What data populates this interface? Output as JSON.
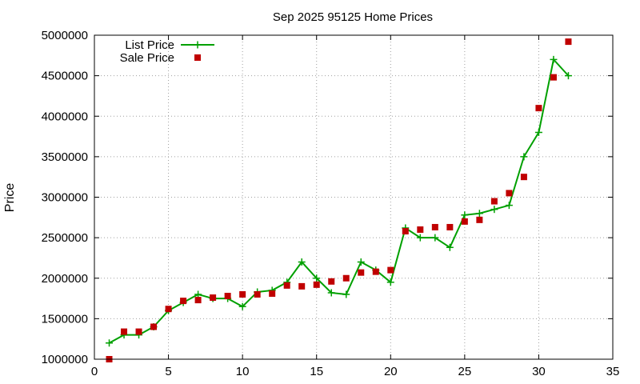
{
  "chart_data": {
    "type": "line",
    "title": "Sep 2025 95125 Home Prices",
    "xlabel": "",
    "ylabel": "Price",
    "xlim": [
      0,
      35
    ],
    "ylim": [
      1000000,
      5000000
    ],
    "xticks": [
      0,
      5,
      10,
      15,
      20,
      25,
      30,
      35
    ],
    "yticks": [
      1000000,
      1500000,
      2000000,
      2500000,
      3000000,
      3500000,
      4000000,
      4500000,
      5000000
    ],
    "grid": true,
    "legend": "top-left",
    "series": [
      {
        "name": "List Price",
        "style": "linespoints",
        "color": "#00a000",
        "x": [
          1,
          2,
          3,
          4,
          5,
          6,
          7,
          8,
          9,
          10,
          11,
          12,
          13,
          14,
          15,
          16,
          17,
          18,
          19,
          20,
          21,
          22,
          23,
          24,
          25,
          26,
          27,
          28,
          29,
          30,
          31,
          32
        ],
        "y": [
          1200000,
          1300000,
          1300000,
          1400000,
          1600000,
          1700000,
          1800000,
          1750000,
          1750000,
          1650000,
          1830000,
          1850000,
          1950000,
          2200000,
          2000000,
          1820000,
          1800000,
          2200000,
          2100000,
          1950000,
          2620000,
          2500000,
          2500000,
          2380000,
          2780000,
          2800000,
          2850000,
          2900000,
          3500000,
          3800000,
          4700000,
          4500000
        ]
      },
      {
        "name": "Sale Price",
        "style": "points",
        "color": "#c00000",
        "x": [
          1,
          2,
          3,
          4,
          5,
          6,
          7,
          8,
          9,
          10,
          11,
          12,
          13,
          14,
          15,
          16,
          17,
          18,
          19,
          20,
          21,
          22,
          23,
          24,
          25,
          26,
          27,
          28,
          29,
          30,
          31,
          32
        ],
        "y": [
          1000000,
          1340000,
          1340000,
          1400000,
          1620000,
          1720000,
          1730000,
          1760000,
          1780000,
          1800000,
          1800000,
          1810000,
          1910000,
          1900000,
          1920000,
          1960000,
          2000000,
          2070000,
          2080000,
          2100000,
          2580000,
          2600000,
          2630000,
          2630000,
          2700000,
          2720000,
          2950000,
          3050000,
          3250000,
          4100000,
          4480000,
          4920000
        ]
      }
    ]
  }
}
